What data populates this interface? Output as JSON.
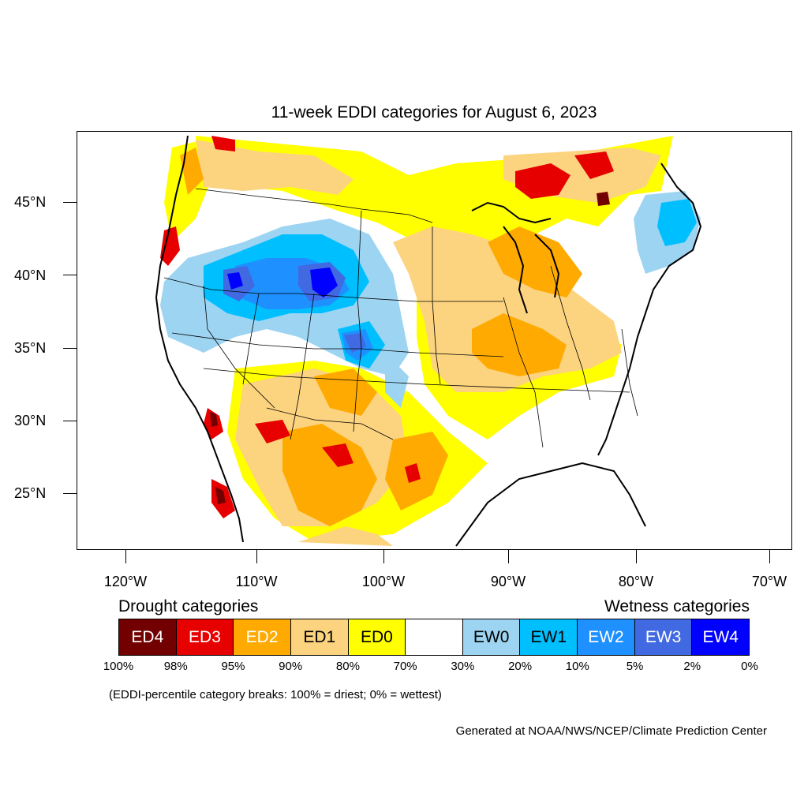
{
  "title": "11-week EDDI categories for August 6, 2023",
  "lat_labels": [
    "45°N",
    "40°N",
    "35°N",
    "30°N",
    "25°N"
  ],
  "lon_labels": [
    "120°W",
    "110°W",
    "100°W",
    "90°W",
    "80°W",
    "70°W"
  ],
  "legend": {
    "drought_heading": "Drought categories",
    "wetness_heading": "Wetness categories",
    "categories": [
      {
        "label": "ED4",
        "color": "#730000",
        "text_color": "#ffffff"
      },
      {
        "label": "ED3",
        "color": "#e60000",
        "text_color": "#ffffff"
      },
      {
        "label": "ED2",
        "color": "#ffaa00",
        "text_color": "#ffffff"
      },
      {
        "label": "ED1",
        "color": "#fcd37f",
        "text_color": "#000000"
      },
      {
        "label": "ED0",
        "color": "#ffff00",
        "text_color": "#000000"
      },
      {
        "label": "",
        "color": "#ffffff",
        "text_color": "#000000"
      },
      {
        "label": "EW0",
        "color": "#9dd4f2",
        "text_color": "#000000"
      },
      {
        "label": "EW1",
        "color": "#00bfff",
        "text_color": "#000000"
      },
      {
        "label": "EW2",
        "color": "#1e90ff",
        "text_color": "#ffffff"
      },
      {
        "label": "EW3",
        "color": "#4169e1",
        "text_color": "#ffffff"
      },
      {
        "label": "EW4",
        "color": "#0000ff",
        "text_color": "#ffffff"
      }
    ],
    "breaks": [
      "100%",
      "98%",
      "95%",
      "90%",
      "80%",
      "70%",
      "30%",
      "20%",
      "10%",
      "5%",
      "2%",
      "0%"
    ]
  },
  "footnote": "(EDDI-percentile category breaks: 100% = driest; 0% = wettest)",
  "credit": "Generated at NOAA/NWS/NCEP/Climate Prediction Center"
}
